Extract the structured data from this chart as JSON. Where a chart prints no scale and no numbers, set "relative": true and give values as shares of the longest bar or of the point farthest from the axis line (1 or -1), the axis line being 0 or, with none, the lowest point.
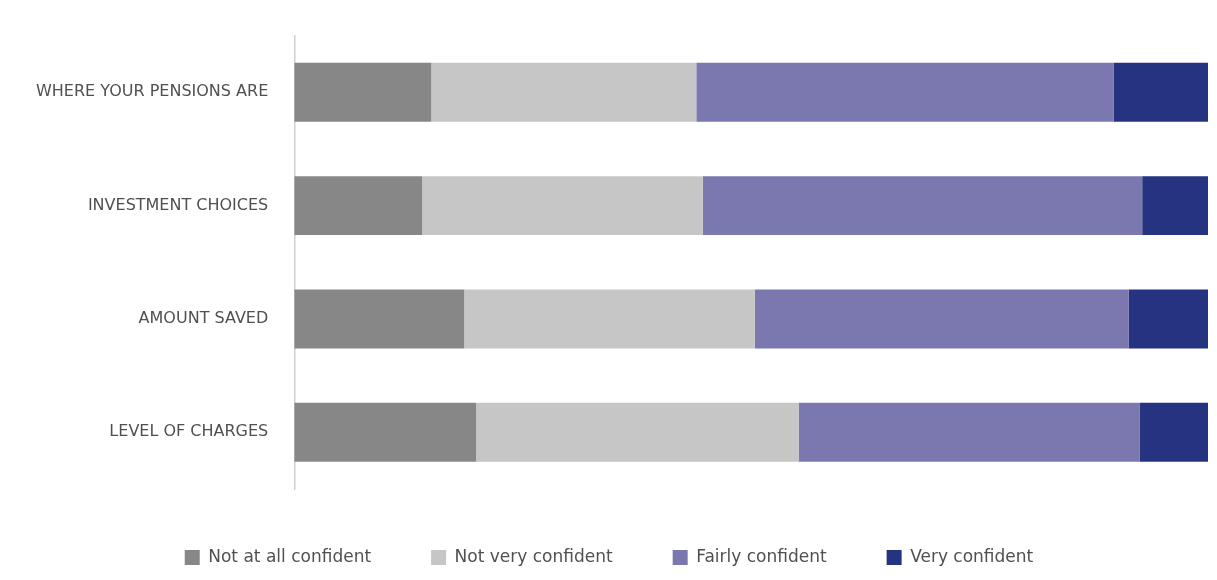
{
  "chart_data": {
    "type": "bar",
    "orientation": "horizontal",
    "stacked": true,
    "relative": true,
    "legend": "bottom",
    "categories": [
      "WHERE YOUR PENSIONS ARE",
      "INVESTMENT CHOICES",
      "AMOUNT SAVED",
      "LEVEL OF CHARGES"
    ],
    "series": [
      {
        "name": "Not at all confident",
        "color": "#878787",
        "values": [
          0.15,
          0.14,
          0.186,
          0.199
        ]
      },
      {
        "name": "Not very confident",
        "color": "#c6c6c6",
        "values": [
          0.29,
          0.307,
          0.318,
          0.353
        ]
      },
      {
        "name": "Fairly confident",
        "color": "#7b78b0",
        "values": [
          0.457,
          0.481,
          0.409,
          0.373
        ]
      },
      {
        "name": "Very confident",
        "color": "#263380",
        "values": [
          0.103,
          0.072,
          0.087,
          0.075
        ]
      }
    ]
  }
}
